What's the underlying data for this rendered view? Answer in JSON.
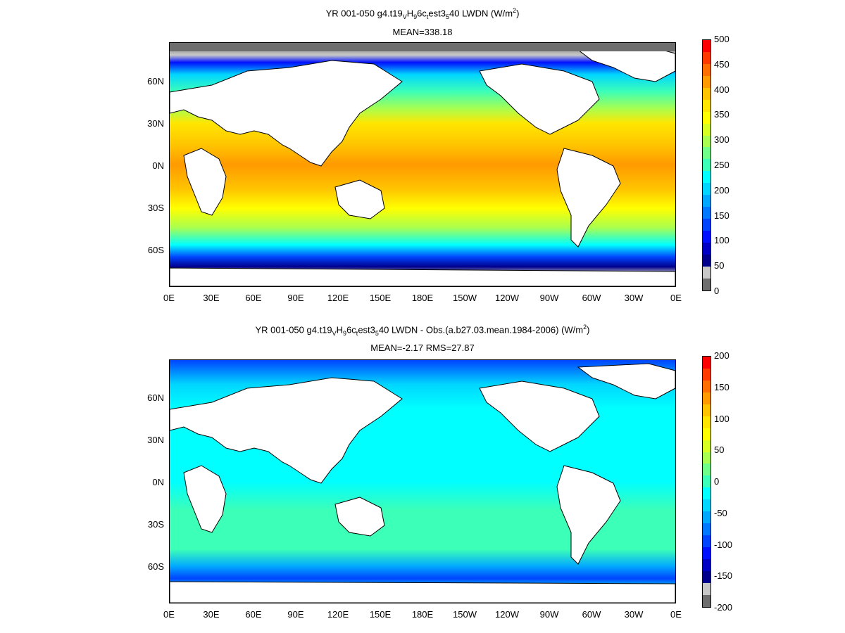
{
  "panels": [
    {
      "title_main": "YR 001-050 g4.t19",
      "title_sub1": "V",
      "title_mid1": "H",
      "title_sub2": "9",
      "title_mid2": "6c",
      "title_sub3": "t",
      "title_mid3": "est3",
      "title_sub4": "5",
      "title_tail": "40 LWDN (W/m",
      "title_sup": "2",
      "title_end": ")",
      "subtitle": "MEAN=338.18",
      "colorbar_labels": [
        "500",
        "450",
        "400",
        "350",
        "300",
        "250",
        "200",
        "150",
        "100",
        "50",
        "0"
      ],
      "colorbar_colors": [
        "#ff0000",
        "#ff3a00",
        "#ff6e00",
        "#ff9a00",
        "#ffc400",
        "#ffe600",
        "#ffff00",
        "#d8ff24",
        "#a8ff50",
        "#70ff88",
        "#3cffb8",
        "#00ffff",
        "#00d6ff",
        "#00a8ff",
        "#0078ff",
        "#0044ff",
        "#0010ff",
        "#0000c4",
        "#00008c",
        "#c8c8c8",
        "#6e6e6e"
      ]
    },
    {
      "title_main": "YR 001-050 g4.t19",
      "title_sub1": "V",
      "title_mid1": "H",
      "title_sub2": "9",
      "title_mid2": "6c",
      "title_sub3": "t",
      "title_mid3": "est3",
      "title_sub4": "5",
      "title_tail": "40 LWDN - Obs.(a.b27.03.mean.1984-2006) (W/m",
      "title_sup": "2",
      "title_end": ")",
      "subtitle": "MEAN=-2.17 RMS=27.87",
      "colorbar_labels": [
        "200",
        "150",
        "100",
        "50",
        "0",
        "-50",
        "-100",
        "-150",
        "-200"
      ],
      "colorbar_colors": [
        "#ff0000",
        "#ff3a00",
        "#ff6e00",
        "#ff9a00",
        "#ffc400",
        "#ffe600",
        "#ffff00",
        "#d8ff24",
        "#a8ff50",
        "#70ff88",
        "#3cffb8",
        "#00ffff",
        "#00d6ff",
        "#00a8ff",
        "#0078ff",
        "#0044ff",
        "#0010ff",
        "#0000c4",
        "#00008c",
        "#c8c8c8",
        "#6e6e6e"
      ]
    }
  ],
  "lat_labels": [
    "60N",
    "30N",
    "0N",
    "30S",
    "60S"
  ],
  "lon_labels": [
    "0E",
    "30E",
    "60E",
    "90E",
    "120E",
    "150E",
    "180E",
    "150W",
    "120W",
    "90W",
    "60W",
    "30W",
    "0E"
  ]
}
